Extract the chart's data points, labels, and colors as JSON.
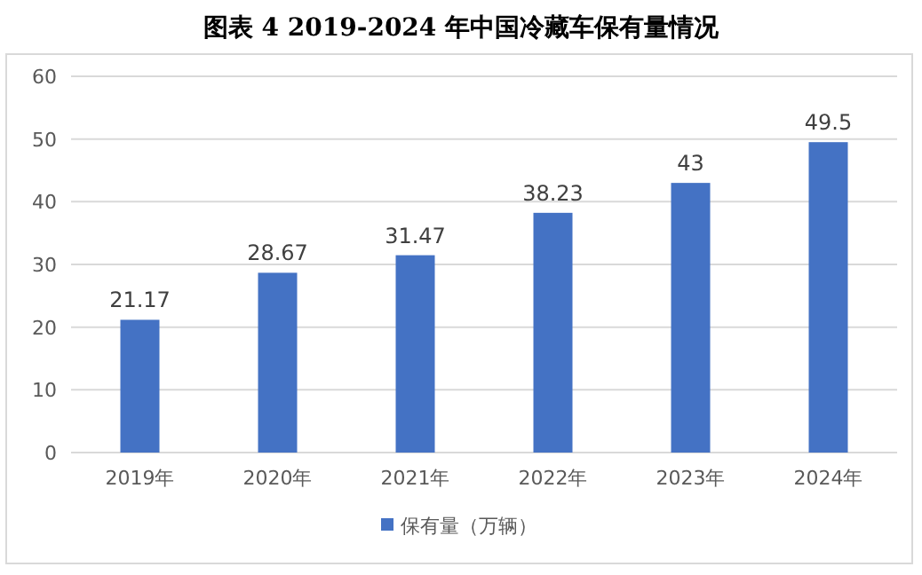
{
  "chart_data": {
    "type": "bar",
    "title": "图表 4    2019-2024 年中国冷藏车保有量情况",
    "categories": [
      "2019年",
      "2020年",
      "2021年",
      "2022年",
      "2023年",
      "2024年"
    ],
    "series": [
      {
        "name": "保有量（万辆）",
        "color": "#4472c4",
        "values": [
          21.17,
          28.67,
          31.47,
          38.23,
          43,
          49.5
        ]
      }
    ],
    "ylim": [
      0,
      60
    ],
    "yticks": [
      0,
      10,
      20,
      30,
      40,
      50,
      60
    ],
    "grid": "y",
    "legend": "bottom",
    "data_labels": true
  }
}
